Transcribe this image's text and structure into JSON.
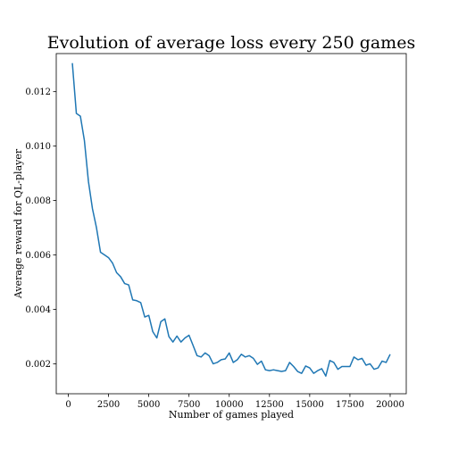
{
  "chart_data": {
    "type": "line",
    "title": "Evolution of average loss every 250 games",
    "xlabel": "Number of games played",
    "ylabel": "Average reward for QL-player",
    "xlim": [
      -750,
      21000
    ],
    "ylim": [
      0.0009,
      0.0134
    ],
    "xticks": [
      0,
      2500,
      5000,
      7500,
      10000,
      12500,
      15000,
      17500,
      20000
    ],
    "xtick_labels": [
      "0",
      "2500",
      "5000",
      "7500",
      "10000",
      "12500",
      "15000",
      "17500",
      "20000"
    ],
    "yticks": [
      0.002,
      0.004,
      0.006,
      0.008,
      0.01,
      0.012
    ],
    "ytick_labels": [
      "0.002",
      "0.004",
      "0.006",
      "0.008",
      "0.010",
      "0.012"
    ],
    "grid": false,
    "color": "#1f77b4",
    "series": [
      {
        "x": [
          250,
          500,
          750,
          1000,
          1250,
          1500,
          1750,
          2000,
          2250,
          2500,
          2750,
          3000,
          3250,
          3500,
          3750,
          4000,
          4250,
          4500,
          4750,
          5000,
          5250,
          5500,
          5750,
          6000,
          6250,
          6500,
          6750,
          7000,
          7250,
          7500,
          7750,
          8000,
          8250,
          8500,
          8750,
          9000,
          9250,
          9500,
          9750,
          10000,
          10250,
          10500,
          10750,
          11000,
          11250,
          11500,
          11750,
          12000,
          12250,
          12500,
          12750,
          13000,
          13250,
          13500,
          13750,
          14000,
          14250,
          14500,
          14750,
          15000,
          15250,
          15500,
          15750,
          16000,
          16250,
          16500,
          16750,
          17000,
          17250,
          17500,
          17750,
          18000,
          18250,
          18500,
          18750,
          19000,
          19250,
          19500,
          19750,
          20000
        ],
        "y": [
          0.01305,
          0.0112,
          0.0111,
          0.0102,
          0.0087,
          0.0077,
          0.007,
          0.0061,
          0.006,
          0.0059,
          0.0057,
          0.00535,
          0.0052,
          0.00495,
          0.0049,
          0.00435,
          0.00432,
          0.00425,
          0.00372,
          0.00378,
          0.00318,
          0.00295,
          0.00355,
          0.00365,
          0.003,
          0.0028,
          0.00302,
          0.0028,
          0.00295,
          0.00305,
          0.00268,
          0.0023,
          0.00225,
          0.0024,
          0.0023,
          0.002,
          0.00205,
          0.00215,
          0.00218,
          0.0024,
          0.00205,
          0.00215,
          0.00235,
          0.00225,
          0.0023,
          0.0022,
          0.00198,
          0.0021,
          0.00178,
          0.00175,
          0.00178,
          0.00175,
          0.00172,
          0.00175,
          0.00205,
          0.0019,
          0.00172,
          0.00165,
          0.00192,
          0.00185,
          0.00165,
          0.00175,
          0.00182,
          0.00155,
          0.00212,
          0.00205,
          0.0018,
          0.0019,
          0.0019,
          0.0019,
          0.00225,
          0.00215,
          0.0022,
          0.00195,
          0.002,
          0.0018,
          0.00185,
          0.0021,
          0.00205,
          0.00235
        ]
      }
    ]
  }
}
